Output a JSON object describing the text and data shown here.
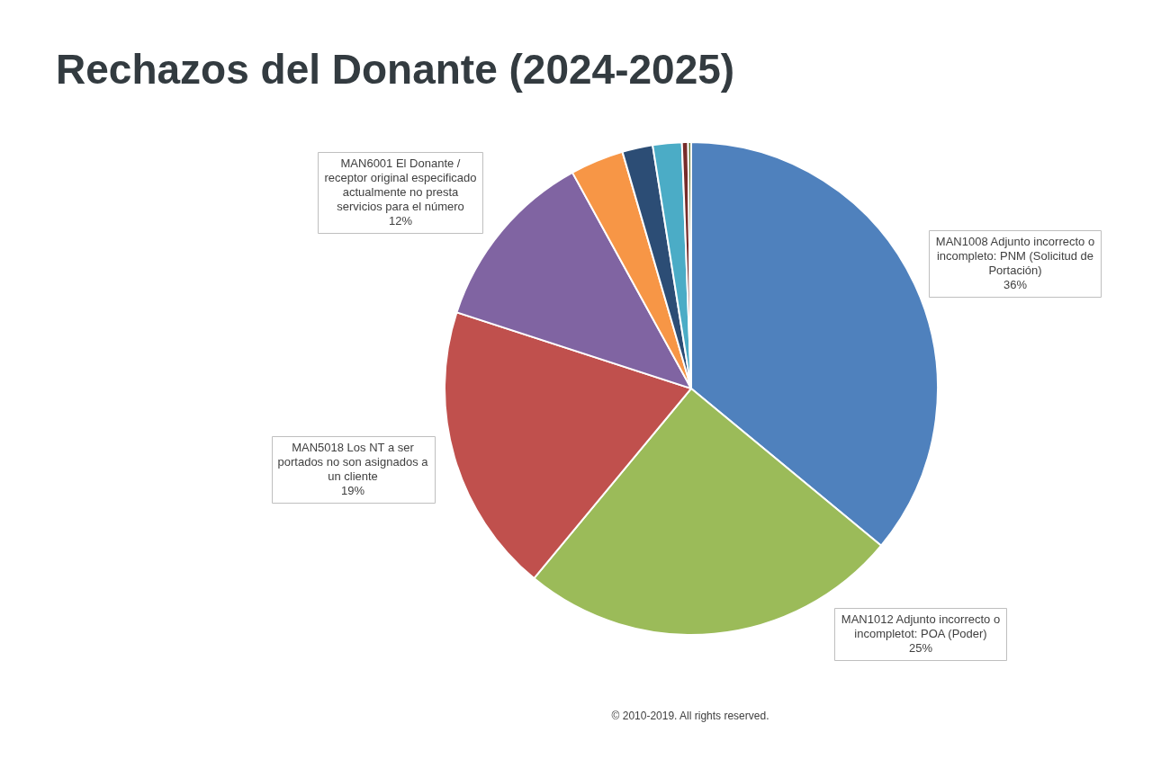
{
  "chart_data": {
    "type": "pie",
    "title": "Rechazos del Donante (2024-2025)",
    "categories": [
      "MAN1008 Adjunto incorrecto o incompleto: PNM (Solicitud de Portación)",
      "MAN1012 Adjunto incorrecto o incompletot: POA (Poder)",
      "MAN5018 Los NT a ser portados no son asignados a un cliente",
      "MAN6001 El Donante / receptor original especificado actualmente no presta servicios para el número",
      null,
      null,
      null,
      null,
      null
    ],
    "values": [
      36,
      25,
      19,
      12,
      3.5,
      2,
      1.9,
      0.4,
      0.2
    ],
    "colors": [
      "#4f81bd",
      "#9bbb59",
      "#c0504d",
      "#8064a2",
      "#f79646",
      "#2c4d75",
      "#4bacc6",
      "#772c2a",
      "#5f7530"
    ],
    "value_labels": [
      "36%",
      "25%",
      "19%",
      "12%",
      null,
      null,
      null,
      null,
      null
    ],
    "annotations": [
      "© 2010-2019. All rights reserved."
    ]
  }
}
